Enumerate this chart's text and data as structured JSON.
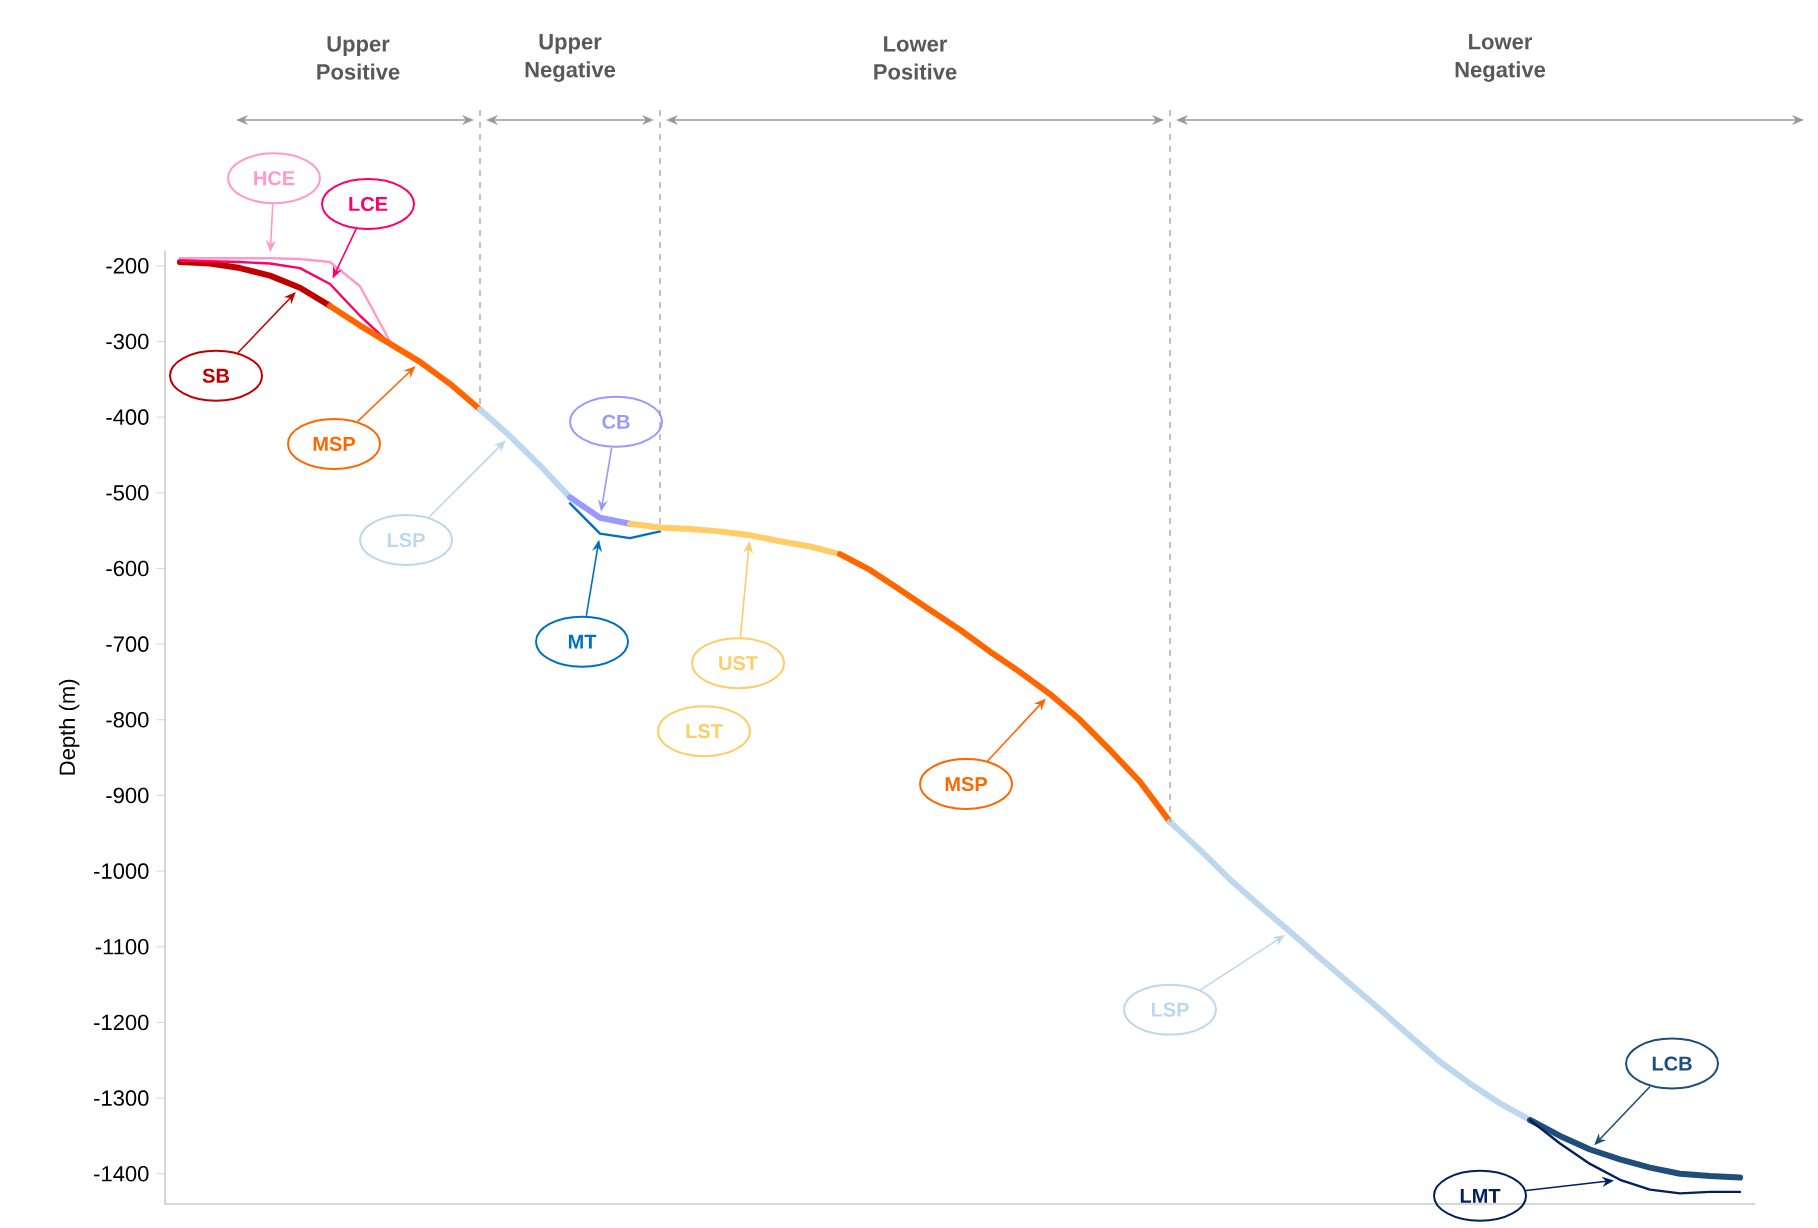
{
  "chart_data": {
    "type": "line",
    "ylabel": "Depth (m)",
    "ylim": [
      -1440,
      -180
    ],
    "yticks": [
      -1400,
      -1300,
      -1200,
      -1100,
      -1000,
      -900,
      -800,
      -700,
      -600,
      -500,
      -400,
      -300,
      -200
    ],
    "tick_labels": "y",
    "marker": "none",
    "categories": [
      null,
      null,
      null,
      null,
      null,
      null,
      null,
      null,
      null,
      null,
      null,
      null,
      null,
      null,
      null,
      null,
      null,
      null,
      null,
      null,
      null,
      null,
      null,
      null,
      null,
      null,
      null,
      null,
      null,
      null,
      null,
      null,
      null,
      null,
      null,
      null,
      null,
      null,
      null,
      null,
      null,
      null,
      null,
      null,
      null,
      null,
      null,
      null,
      null,
      null,
      null,
      null,
      null
    ],
    "annotations": [
      "Upper Positive",
      "Upper Negative",
      "Lower Positive",
      "Lower Negative",
      "SB",
      "HCE",
      "LCE",
      "MSP",
      "LSP",
      "CB",
      "MT",
      "UST",
      "LST",
      "MSP",
      "LSP",
      "LCB",
      "LMT"
    ],
    "series": [
      {
        "color": "#c00000",
        "values": [
          -195,
          -197,
          -203,
          -213,
          -229,
          -253,
          null,
          null,
          null,
          null,
          null,
          null,
          null,
          null,
          null,
          null,
          null,
          null,
          null,
          null,
          null,
          null,
          null,
          null,
          null,
          null,
          null,
          null,
          null,
          null,
          null,
          null,
          null,
          null,
          null,
          null,
          null,
          null,
          null,
          null,
          null,
          null,
          null,
          null,
          null,
          null,
          null,
          null,
          null,
          null,
          null,
          null,
          null
        ]
      },
      {
        "color": "#ff99cc",
        "values": [
          -190,
          -190,
          -190,
          -190,
          -191,
          -195,
          -227,
          -300,
          null,
          null,
          null,
          null,
          null,
          null,
          null,
          null,
          null,
          null,
          null,
          null,
          null,
          null,
          null,
          null,
          null,
          null,
          null,
          null,
          null,
          null,
          null,
          null,
          null,
          null,
          null,
          null,
          null,
          null,
          null,
          null,
          null,
          null,
          null,
          null,
          null,
          null,
          null,
          null,
          null,
          null,
          null,
          null,
          null
        ]
      },
      {
        "color": "#ff0066",
        "values": [
          -193,
          -194,
          -195,
          -197,
          -203,
          -224,
          -266,
          -303,
          null,
          null,
          null,
          null,
          null,
          null,
          null,
          null,
          null,
          null,
          null,
          null,
          null,
          null,
          null,
          null,
          null,
          null,
          null,
          null,
          null,
          null,
          null,
          null,
          null,
          null,
          null,
          null,
          null,
          null,
          null,
          null,
          null,
          null,
          null,
          null,
          null,
          null,
          null,
          null,
          null,
          null,
          null,
          null,
          null
        ]
      },
      {
        "color": "#ff6600",
        "values": [
          null,
          null,
          null,
          null,
          null,
          -253,
          -279,
          -303,
          -327,
          -356,
          -390,
          null,
          null,
          null,
          null,
          null,
          null,
          null,
          null,
          null,
          null,
          null,
          null,
          null,
          null,
          null,
          null,
          null,
          null,
          null,
          null,
          null,
          null,
          null,
          null,
          null,
          null,
          null,
          null,
          null,
          null,
          null,
          null,
          null,
          null,
          null,
          null,
          null,
          null,
          null,
          null,
          null,
          null
        ]
      },
      {
        "color": "#bdd7ee",
        "values": [
          null,
          null,
          null,
          null,
          null,
          null,
          null,
          null,
          null,
          null,
          -390,
          -425,
          -464,
          -506,
          null,
          null,
          null,
          null,
          null,
          null,
          null,
          null,
          null,
          null,
          null,
          null,
          null,
          null,
          null,
          null,
          null,
          null,
          null,
          null,
          null,
          null,
          null,
          null,
          null,
          null,
          null,
          null,
          null,
          null,
          null,
          null,
          null,
          null,
          null,
          null,
          null,
          null,
          null
        ]
      },
      {
        "color": "#9999ff",
        "values": [
          null,
          null,
          null,
          null,
          null,
          null,
          null,
          null,
          null,
          null,
          null,
          null,
          null,
          -506,
          -533,
          -541,
          null,
          null,
          null,
          null,
          null,
          null,
          null,
          null,
          null,
          null,
          null,
          null,
          null,
          null,
          null,
          null,
          null,
          null,
          null,
          null,
          null,
          null,
          null,
          null,
          null,
          null,
          null,
          null,
          null,
          null,
          null,
          null,
          null,
          null,
          null,
          null,
          null
        ]
      },
      {
        "color": "#0070c0",
        "values": [
          null,
          null,
          null,
          null,
          null,
          null,
          null,
          null,
          null,
          null,
          null,
          null,
          null,
          -514,
          -554,
          -560,
          -551,
          null,
          null,
          null,
          null,
          null,
          null,
          null,
          null,
          null,
          null,
          null,
          null,
          null,
          null,
          null,
          null,
          null,
          null,
          null,
          null,
          null,
          null,
          null,
          null,
          null,
          null,
          null,
          null,
          null,
          null,
          null,
          null,
          null,
          null,
          null,
          null
        ]
      },
      {
        "color": "#ffcc66",
        "values": [
          null,
          null,
          null,
          null,
          null,
          null,
          null,
          null,
          null,
          null,
          null,
          null,
          null,
          null,
          null,
          -541,
          -546,
          -548,
          -551,
          -556,
          -564,
          -571,
          -581,
          null,
          null,
          null,
          null,
          null,
          null,
          null,
          null,
          null,
          null,
          null,
          null,
          null,
          null,
          null,
          null,
          null,
          null,
          null,
          null,
          null,
          null,
          null,
          null,
          null,
          null,
          null,
          null,
          null,
          null
        ]
      },
      {
        "color": "#ff6600",
        "values": [
          null,
          null,
          null,
          null,
          null,
          null,
          null,
          null,
          null,
          null,
          null,
          null,
          null,
          null,
          null,
          null,
          null,
          null,
          null,
          null,
          null,
          null,
          -581,
          -602,
          -628,
          -655,
          -681,
          -710,
          -737,
          -766,
          -800,
          -840,
          -882,
          -935,
          null,
          null,
          null,
          null,
          null,
          null,
          null,
          null,
          null,
          null,
          null,
          null,
          null,
          null,
          null,
          null,
          null,
          null,
          null
        ]
      },
      {
        "color": "#bdd7ee",
        "values": [
          null,
          null,
          null,
          null,
          null,
          null,
          null,
          null,
          null,
          null,
          null,
          null,
          null,
          null,
          null,
          null,
          null,
          null,
          null,
          null,
          null,
          null,
          null,
          null,
          null,
          null,
          null,
          null,
          null,
          null,
          null,
          null,
          null,
          -935,
          -972,
          -1011,
          -1046,
          -1080,
          -1115,
          -1149,
          -1183,
          -1218,
          -1252,
          -1281,
          -1307,
          -1329,
          null,
          null,
          null,
          null,
          null,
          null,
          null
        ]
      },
      {
        "color": "#1f4e79",
        "values": [
          null,
          null,
          null,
          null,
          null,
          null,
          null,
          null,
          null,
          null,
          null,
          null,
          null,
          null,
          null,
          null,
          null,
          null,
          null,
          null,
          null,
          null,
          null,
          null,
          null,
          null,
          null,
          null,
          null,
          null,
          null,
          null,
          null,
          null,
          null,
          null,
          null,
          null,
          null,
          null,
          null,
          null,
          null,
          null,
          null,
          -1329,
          -1350,
          -1368,
          -1381,
          -1392,
          -1400,
          -1403,
          -1405
        ]
      },
      {
        "color": "#002060",
        "values": [
          null,
          null,
          null,
          null,
          null,
          null,
          null,
          null,
          null,
          null,
          null,
          null,
          null,
          null,
          null,
          null,
          null,
          null,
          null,
          null,
          null,
          null,
          null,
          null,
          null,
          null,
          null,
          null,
          null,
          null,
          null,
          null,
          null,
          null,
          null,
          null,
          null,
          null,
          null,
          null,
          null,
          null,
          null,
          null,
          null,
          -1329,
          -1360,
          -1387,
          -1408,
          -1421,
          -1426,
          -1424,
          -1424
        ]
      }
    ]
  }
}
